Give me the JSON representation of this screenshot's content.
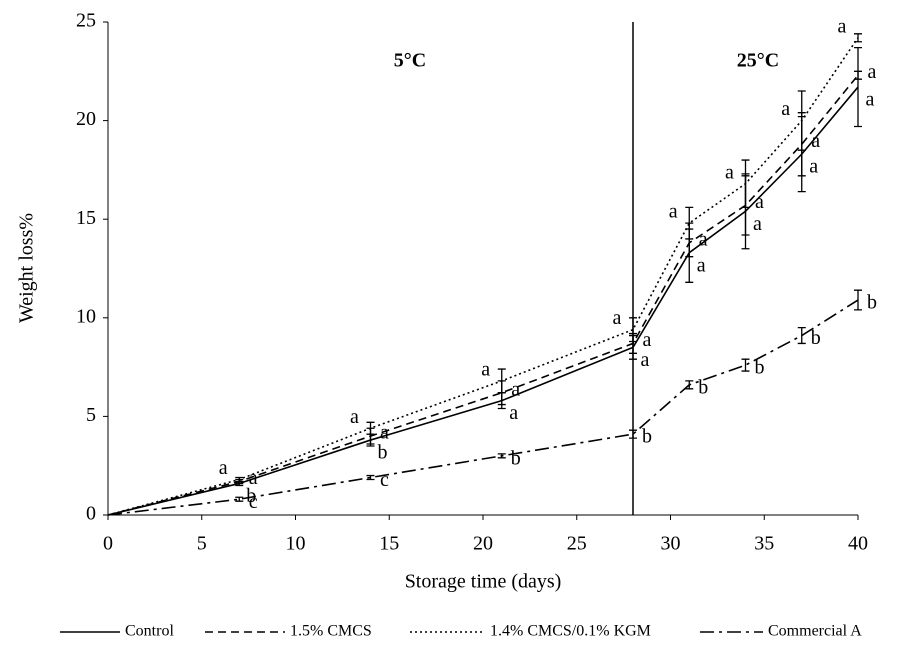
{
  "chart_data": {
    "type": "line",
    "x_label": "Storage time (days)",
    "y_label": "Weight loss%",
    "x": [
      0,
      7,
      14,
      21,
      28,
      31,
      34,
      37,
      40
    ],
    "xlim": [
      0,
      40
    ],
    "xticks": [
      0,
      5,
      10,
      15,
      20,
      25,
      30,
      35,
      40
    ],
    "ylim": [
      0,
      25
    ],
    "yticks": [
      0,
      5,
      10,
      15,
      20,
      25
    ],
    "divider": 28,
    "annotations": [
      "5°C",
      "25°C"
    ],
    "series": [
      {
        "name": "Control",
        "color": "#000000",
        "dash": "solid",
        "values": [
          0,
          1.6,
          3.8,
          5.8,
          8.5,
          13.3,
          15.4,
          18.3,
          21.7
        ],
        "errors": [
          0,
          0.1,
          0.3,
          0.4,
          0.6,
          1.5,
          1.9,
          1.9,
          2.0
        ],
        "letters": [
          null,
          "b",
          "b",
          "a",
          "a",
          "a",
          "a",
          "a",
          "a"
        ]
      },
      {
        "name": "1.5% CMCS",
        "color": "#000000",
        "dash": "dashed",
        "values": [
          0,
          1.7,
          4.0,
          6.2,
          8.7,
          13.8,
          15.7,
          18.8,
          22.3
        ],
        "errors": [
          0,
          0.1,
          0.4,
          0.6,
          0.5,
          0.7,
          1.5,
          1.6,
          0.2
        ],
        "letters": [
          null,
          "a",
          "a",
          "a",
          "a",
          "a",
          "a",
          "a",
          "a"
        ]
      },
      {
        "name": "1.4% CMCS/0.1% KGM",
        "color": "#000000",
        "dash": "dotted",
        "values": [
          0,
          1.8,
          4.4,
          6.8,
          9.4,
          14.8,
          16.8,
          20.0,
          24.2
        ],
        "errors": [
          0,
          0.1,
          0.3,
          0.6,
          0.6,
          0.8,
          1.2,
          1.5,
          0.2
        ],
        "letters": [
          null,
          "a",
          "a",
          "a",
          "a",
          "a",
          "a",
          "a",
          "a"
        ]
      },
      {
        "name": "Commercial A",
        "color": "#000000",
        "dash": "dashdot",
        "values": [
          0,
          0.8,
          1.9,
          3.0,
          4.1,
          6.6,
          7.6,
          9.1,
          10.9
        ],
        "errors": [
          0,
          0.1,
          0.1,
          0.1,
          0.2,
          0.2,
          0.3,
          0.4,
          0.5
        ],
        "letters": [
          null,
          "c",
          "c",
          "b",
          "b",
          "b",
          "b",
          "b",
          "b"
        ]
      }
    ]
  }
}
